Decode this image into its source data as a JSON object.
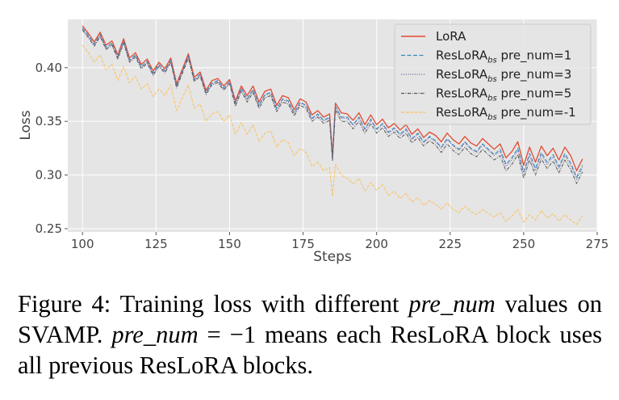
{
  "chart_data": {
    "type": "line",
    "title": "",
    "xlabel": "Steps",
    "ylabel": "Loss",
    "xlim": [
      95,
      275
    ],
    "ylim": [
      0.247,
      0.445
    ],
    "xticks": [
      100,
      125,
      150,
      175,
      200,
      225,
      250,
      275
    ],
    "yticks": [
      0.25,
      0.3,
      0.35,
      0.4
    ],
    "ytick_labels": [
      "0.25",
      "0.30",
      "0.35",
      "0.40"
    ],
    "grid": true,
    "background": "#e5e5e5",
    "legend_position": "top-right",
    "x": [
      100,
      102,
      104,
      106,
      108,
      110,
      112,
      114,
      116,
      118,
      120,
      122,
      124,
      126,
      128,
      130,
      132,
      134,
      136,
      138,
      140,
      142,
      144,
      146,
      148,
      150,
      152,
      154,
      156,
      158,
      160,
      162,
      164,
      166,
      168,
      170,
      172,
      174,
      176,
      178,
      180,
      182,
      184,
      185,
      186,
      188,
      190,
      192,
      194,
      196,
      198,
      200,
      202,
      204,
      206,
      208,
      210,
      212,
      214,
      216,
      218,
      220,
      222,
      224,
      226,
      228,
      230,
      232,
      234,
      236,
      238,
      240,
      242,
      244,
      246,
      248,
      250,
      252,
      254,
      256,
      258,
      260,
      262,
      264,
      266,
      268,
      270
    ],
    "series": [
      {
        "name": "LoRA",
        "base": "LoRA",
        "sub": "",
        "suffix": "",
        "color": "#e24a33",
        "dash": "",
        "width": 1.3,
        "values": [
          0.439,
          0.432,
          0.424,
          0.433,
          0.421,
          0.425,
          0.412,
          0.427,
          0.409,
          0.414,
          0.403,
          0.408,
          0.397,
          0.405,
          0.399,
          0.409,
          0.385,
          0.399,
          0.413,
          0.391,
          0.396,
          0.379,
          0.388,
          0.39,
          0.383,
          0.389,
          0.369,
          0.383,
          0.374,
          0.383,
          0.368,
          0.378,
          0.38,
          0.365,
          0.374,
          0.372,
          0.361,
          0.371,
          0.368,
          0.356,
          0.36,
          0.354,
          0.357,
          0.318,
          0.367,
          0.358,
          0.357,
          0.351,
          0.358,
          0.347,
          0.356,
          0.347,
          0.352,
          0.344,
          0.348,
          0.342,
          0.347,
          0.338,
          0.343,
          0.335,
          0.34,
          0.337,
          0.331,
          0.339,
          0.333,
          0.329,
          0.336,
          0.33,
          0.327,
          0.334,
          0.329,
          0.324,
          0.329,
          0.316,
          0.322,
          0.331,
          0.309,
          0.326,
          0.312,
          0.327,
          0.318,
          0.325,
          0.314,
          0.326,
          0.318,
          0.304,
          0.315
        ]
      },
      {
        "name": "ResLoRAbs pre_num=1",
        "base": "ResLoRA",
        "sub": "bs",
        "suffix": " pre_num=1",
        "color": "#348abd",
        "dash": "5,2.5",
        "width": 1.1,
        "values": [
          0.437,
          0.43,
          0.422,
          0.431,
          0.419,
          0.423,
          0.41,
          0.425,
          0.407,
          0.412,
          0.401,
          0.406,
          0.395,
          0.403,
          0.397,
          0.407,
          0.383,
          0.397,
          0.411,
          0.389,
          0.394,
          0.377,
          0.386,
          0.388,
          0.381,
          0.387,
          0.367,
          0.381,
          0.371,
          0.38,
          0.365,
          0.375,
          0.377,
          0.362,
          0.371,
          0.369,
          0.358,
          0.368,
          0.365,
          0.353,
          0.357,
          0.351,
          0.354,
          0.316,
          0.364,
          0.354,
          0.354,
          0.347,
          0.354,
          0.343,
          0.352,
          0.343,
          0.348,
          0.34,
          0.344,
          0.338,
          0.343,
          0.334,
          0.339,
          0.331,
          0.336,
          0.332,
          0.326,
          0.334,
          0.328,
          0.324,
          0.331,
          0.325,
          0.322,
          0.329,
          0.324,
          0.319,
          0.324,
          0.31,
          0.316,
          0.325,
          0.303,
          0.32,
          0.306,
          0.321,
          0.312,
          0.319,
          0.308,
          0.32,
          0.311,
          0.298,
          0.309
        ]
      },
      {
        "name": "ResLoRAbs pre_num=3",
        "base": "ResLoRA",
        "sub": "bs",
        "suffix": " pre_num=3",
        "color": "#7a68a6",
        "dash": "1.2,1.6",
        "width": 1.0,
        "values": [
          0.436,
          0.429,
          0.421,
          0.43,
          0.418,
          0.422,
          0.409,
          0.424,
          0.406,
          0.411,
          0.4,
          0.405,
          0.394,
          0.402,
          0.396,
          0.406,
          0.382,
          0.396,
          0.41,
          0.388,
          0.393,
          0.376,
          0.385,
          0.387,
          0.38,
          0.386,
          0.366,
          0.38,
          0.37,
          0.379,
          0.364,
          0.374,
          0.376,
          0.361,
          0.37,
          0.368,
          0.357,
          0.367,
          0.364,
          0.352,
          0.356,
          0.35,
          0.353,
          0.315,
          0.363,
          0.353,
          0.353,
          0.346,
          0.353,
          0.342,
          0.351,
          0.342,
          0.347,
          0.339,
          0.343,
          0.337,
          0.342,
          0.333,
          0.338,
          0.33,
          0.335,
          0.331,
          0.325,
          0.333,
          0.327,
          0.323,
          0.33,
          0.324,
          0.321,
          0.328,
          0.323,
          0.318,
          0.322,
          0.308,
          0.314,
          0.323,
          0.301,
          0.318,
          0.304,
          0.319,
          0.31,
          0.317,
          0.306,
          0.318,
          0.309,
          0.296,
          0.307
        ]
      },
      {
        "name": "ResLoRAbs pre_num=5",
        "base": "ResLoRA",
        "sub": "bs",
        "suffix": " pre_num=5",
        "color": "#555555",
        "dash": "4,1.5,1,1.5",
        "width": 1.0,
        "values": [
          0.435,
          0.428,
          0.42,
          0.429,
          0.417,
          0.421,
          0.408,
          0.423,
          0.405,
          0.41,
          0.399,
          0.404,
          0.393,
          0.401,
          0.395,
          0.405,
          0.381,
          0.395,
          0.409,
          0.387,
          0.392,
          0.375,
          0.384,
          0.386,
          0.379,
          0.385,
          0.364,
          0.378,
          0.368,
          0.377,
          0.362,
          0.372,
          0.374,
          0.359,
          0.368,
          0.366,
          0.355,
          0.365,
          0.362,
          0.35,
          0.354,
          0.348,
          0.351,
          0.313,
          0.361,
          0.35,
          0.35,
          0.343,
          0.35,
          0.339,
          0.348,
          0.339,
          0.344,
          0.336,
          0.34,
          0.334,
          0.339,
          0.33,
          0.335,
          0.327,
          0.332,
          0.328,
          0.321,
          0.329,
          0.323,
          0.319,
          0.326,
          0.32,
          0.317,
          0.324,
          0.319,
          0.314,
          0.318,
          0.304,
          0.31,
          0.319,
          0.297,
          0.314,
          0.3,
          0.315,
          0.306,
          0.313,
          0.302,
          0.314,
          0.305,
          0.292,
          0.303
        ]
      },
      {
        "name": "ResLoRAbs pre_num=-1",
        "base": "ResLoRA",
        "sub": "bs",
        "suffix": " pre_num=-1",
        "color": "#fbc15e",
        "dash": "4,1.5",
        "width": 1.0,
        "values": [
          0.421,
          0.414,
          0.405,
          0.412,
          0.398,
          0.403,
          0.388,
          0.401,
          0.386,
          0.392,
          0.38,
          0.385,
          0.373,
          0.38,
          0.374,
          0.384,
          0.36,
          0.372,
          0.384,
          0.362,
          0.366,
          0.35,
          0.357,
          0.359,
          0.35,
          0.356,
          0.338,
          0.349,
          0.338,
          0.347,
          0.331,
          0.339,
          0.341,
          0.326,
          0.333,
          0.33,
          0.318,
          0.325,
          0.321,
          0.308,
          0.312,
          0.304,
          0.307,
          0.28,
          0.31,
          0.3,
          0.297,
          0.292,
          0.297,
          0.285,
          0.293,
          0.286,
          0.291,
          0.281,
          0.285,
          0.278,
          0.283,
          0.275,
          0.279,
          0.272,
          0.276,
          0.273,
          0.268,
          0.274,
          0.268,
          0.265,
          0.271,
          0.266,
          0.263,
          0.268,
          0.264,
          0.261,
          0.265,
          0.257,
          0.262,
          0.268,
          0.256,
          0.263,
          0.258,
          0.267,
          0.26,
          0.264,
          0.257,
          0.263,
          0.258,
          0.254,
          0.262
        ]
      }
    ]
  },
  "caption": {
    "label": "Figure 4:",
    "seg1": "  Training loss with different ",
    "math1": "pre_num",
    "seg2": " values on SVAMP. ",
    "math2": "pre_num",
    "seg3": " = −1 means each ResLoRA block uses all previous ResLoRA blocks."
  }
}
